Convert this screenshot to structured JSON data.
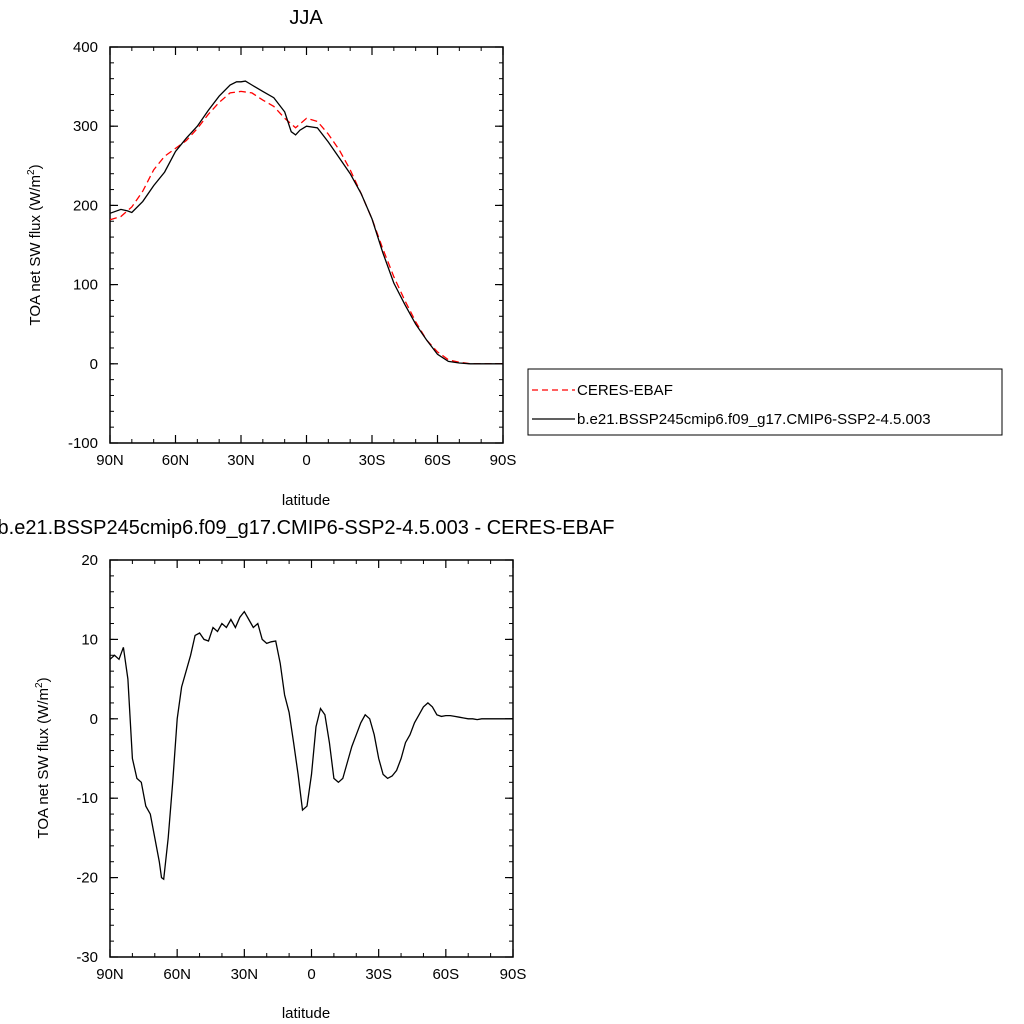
{
  "colors": {
    "model": "#000000",
    "obs": "#ff0000"
  },
  "chart_data": [
    {
      "type": "line",
      "title": "JJA",
      "xlabel": "latitude",
      "ylabel": "TOA net SW flux (W/m",
      "ylabel_sup": "2",
      "ylabel_end": ")",
      "xlim": [
        90,
        -90
      ],
      "ylim": [
        -100,
        400
      ],
      "xticks": [
        90,
        60,
        30,
        0,
        -30,
        -60,
        -90
      ],
      "xtick_labels": [
        "90N",
        "60N",
        "30N",
        "0",
        "30S",
        "60S",
        "90S"
      ],
      "yticks": [
        -100,
        0,
        100,
        200,
        300,
        400
      ],
      "ytick_labels": [
        "-100",
        "0",
        "100",
        "200",
        "300",
        "400"
      ],
      "legend_position": "right",
      "series": [
        {
          "name": "CERES-EBAF",
          "style": "dashed",
          "x": [
            90,
            85,
            80,
            75,
            70,
            65,
            60,
            55,
            50,
            45,
            40,
            35,
            30,
            25,
            20,
            15,
            10,
            5,
            0,
            -5,
            -10,
            -15,
            -20,
            -25,
            -30,
            -35,
            -40,
            -45,
            -50,
            -55,
            -60,
            -65,
            -70,
            -75,
            -80,
            -85,
            -90
          ],
          "values": [
            182,
            186,
            198,
            218,
            245,
            262,
            272,
            282,
            297,
            315,
            330,
            342,
            344,
            342,
            333,
            325,
            310,
            298,
            310,
            306,
            290,
            270,
            245,
            215,
            183,
            145,
            110,
            80,
            53,
            30,
            15,
            5,
            2,
            0,
            0,
            0,
            0
          ]
        },
        {
          "name": "b.e21.BSSP245cmip6.f09_g17.CMIP6-SSP2-4.5.003",
          "style": "solid",
          "x": [
            90,
            85,
            82,
            80,
            75,
            70,
            65,
            60,
            55,
            50,
            45,
            40,
            35,
            32,
            30,
            28,
            25,
            20,
            15,
            10,
            7,
            5,
            3,
            0,
            -5,
            -10,
            -15,
            -20,
            -25,
            -30,
            -35,
            -40,
            -45,
            -50,
            -55,
            -60,
            -65,
            -70,
            -75,
            -80,
            -85,
            -90
          ],
          "values": [
            190,
            195,
            193,
            191,
            205,
            225,
            242,
            268,
            285,
            300,
            320,
            338,
            352,
            356,
            356,
            357,
            352,
            344,
            336,
            318,
            293,
            289,
            295,
            300,
            298,
            280,
            260,
            240,
            215,
            183,
            140,
            102,
            75,
            50,
            30,
            12,
            3,
            1,
            0,
            0,
            0,
            0
          ]
        }
      ]
    },
    {
      "type": "line",
      "title": "b.e21.BSSP245cmip6.f09_g17.CMIP6-SSP2-4.5.003 - CERES-EBAF",
      "xlabel": "latitude",
      "ylabel": "TOA net SW flux (W/m",
      "ylabel_sup": "2",
      "ylabel_end": ")",
      "xlim": [
        90,
        -90
      ],
      "ylim": [
        -30,
        20
      ],
      "xticks": [
        90,
        60,
        30,
        0,
        -30,
        -60,
        -90
      ],
      "xtick_labels": [
        "90N",
        "60N",
        "30N",
        "0",
        "30S",
        "60S",
        "90S"
      ],
      "yticks": [
        -30,
        -20,
        -10,
        0,
        10,
        20
      ],
      "ytick_labels": [
        "-30",
        "-20",
        "-10",
        "0",
        "10",
        "20"
      ],
      "series": [
        {
          "name": "",
          "style": "solid",
          "x": [
            90,
            88,
            86,
            84,
            82,
            80,
            78,
            76,
            74,
            72,
            70,
            68,
            67,
            66,
            64,
            62,
            60,
            58,
            56,
            54,
            52,
            50,
            48,
            46,
            44,
            42,
            40,
            38,
            36,
            34,
            32,
            30,
            28,
            26,
            24,
            22,
            20,
            18,
            16,
            14,
            12,
            10,
            8,
            6,
            4,
            2,
            0,
            -2,
            -4,
            -6,
            -8,
            -10,
            -12,
            -14,
            -16,
            -18,
            -20,
            -22,
            -24,
            -26,
            -28,
            -30,
            -32,
            -34,
            -36,
            -38,
            -40,
            -42,
            -44,
            -46,
            -48,
            -50,
            -52,
            -54,
            -56,
            -58,
            -60,
            -62,
            -64,
            -66,
            -68,
            -70,
            -72,
            -74,
            -76,
            -78,
            -80,
            -82,
            -84,
            -86,
            -88,
            -90
          ],
          "values": [
            7.5,
            8.0,
            7.5,
            9.0,
            5.0,
            -5.0,
            -7.5,
            -8.0,
            -11.0,
            -12.0,
            -15.0,
            -18.0,
            -20.0,
            -20.2,
            -15.0,
            -8.0,
            0.0,
            4.0,
            6.0,
            8.0,
            10.5,
            10.8,
            10.0,
            9.8,
            11.5,
            11.0,
            12.0,
            11.5,
            12.5,
            11.5,
            12.8,
            13.5,
            12.5,
            11.5,
            12.0,
            10.0,
            9.5,
            9.7,
            9.8,
            7.0,
            3.0,
            0.8,
            -3.0,
            -7.0,
            -11.5,
            -11.0,
            -7.0,
            -1.0,
            1.3,
            0.5,
            -3.0,
            -7.5,
            -8.0,
            -7.5,
            -5.5,
            -3.5,
            -2.0,
            -0.5,
            0.5,
            0.0,
            -2.0,
            -5.0,
            -7.0,
            -7.5,
            -7.2,
            -6.5,
            -5.0,
            -3.0,
            -2.0,
            -0.5,
            0.5,
            1.5,
            2.0,
            1.5,
            0.5,
            0.3,
            0.4,
            0.4,
            0.3,
            0.2,
            0.1,
            0.0,
            0.0,
            -0.1,
            0.0,
            0.0,
            0.0,
            0.0,
            0.0,
            0.0,
            0.0,
            0.0
          ]
        }
      ]
    }
  ]
}
